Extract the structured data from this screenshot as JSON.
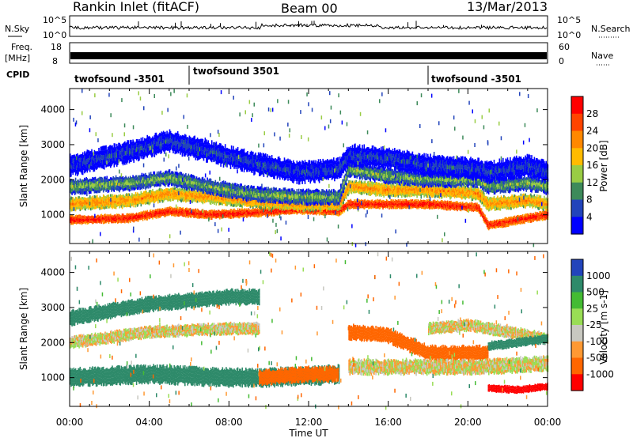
{
  "header": {
    "station": "Rankin Inlet (fitACF)",
    "beam": "Beam 00",
    "date": "13/Mar/2013"
  },
  "strips": {
    "nsky_label": "N.Sky",
    "nsky_ticks": [
      "10^5",
      "10^0"
    ],
    "nsearch_label": "N.Search",
    "nsearch_ticks": [
      "10^5",
      "10^0"
    ],
    "freq_label": "Freq.",
    "freq_unit": "[MHz]",
    "freq_ticks": [
      "18",
      "8"
    ],
    "nave_label": "Nave",
    "nave_ticks": [
      "60",
      "0"
    ],
    "cpid_label": "CPID",
    "cpid_segments": [
      {
        "label": "twofsound -3501",
        "start_hour": 0.0
      },
      {
        "label": "twofsound 3501",
        "start_hour": 6.0
      },
      {
        "label": "twofsound -3501",
        "start_hour": 18.0
      }
    ]
  },
  "chart_data": [
    {
      "type": "heatmap",
      "name": "power",
      "ylabel": "Slant Range [km]",
      "xlabel": "Time UT",
      "xlim_hours": [
        0,
        24
      ],
      "ylim": [
        180,
        4600
      ],
      "y_ticks": [
        1000,
        2000,
        3000,
        4000
      ],
      "x_ticks": [
        "00:00",
        "04:00",
        "08:00",
        "12:00",
        "16:00",
        "20:00",
        "00:00"
      ],
      "colorbar_label": "Power [dB]",
      "colorbar_ticks": [
        "28",
        "24",
        "20",
        "16",
        "12",
        "8",
        "4"
      ],
      "colorbar_colors": [
        "#ff0000",
        "#ff4400",
        "#ff8800",
        "#ffbb00",
        "#99cc44",
        "#3d8a5a",
        "#2244bb",
        "#0000ff"
      ],
      "bands": [
        {
          "hours": [
            0,
            3,
            5,
            7,
            9,
            11.5,
            13.5,
            14,
            16,
            18,
            20.5,
            21,
            23,
            24
          ],
          "center_km": [
            850,
            900,
            1100,
            1000,
            1050,
            1150,
            1100,
            1300,
            1300,
            1300,
            1200,
            700,
            900,
            1000
          ],
          "width_km": 300,
          "level": 28
        },
        {
          "hours": [
            0,
            3,
            5,
            7,
            9,
            11.5,
            13.5,
            14,
            16,
            18,
            20.5,
            21,
            23,
            24
          ],
          "center_km": [
            1300,
            1400,
            1600,
            1500,
            1400,
            1300,
            1300,
            1800,
            1700,
            1700,
            1600,
            1300,
            1400,
            1300
          ],
          "width_km": 450,
          "level": 20
        },
        {
          "hours": [
            0,
            3,
            5,
            7,
            9,
            11.5,
            13.5,
            14,
            16,
            18,
            20.5,
            21,
            23,
            24
          ],
          "center_km": [
            1800,
            1900,
            2050,
            1800,
            1600,
            1500,
            1500,
            2300,
            2100,
            2000,
            2000,
            1800,
            1900,
            1800
          ],
          "width_km": 500,
          "level": 12
        },
        {
          "hours": [
            0,
            3,
            5,
            7,
            9,
            11.5,
            13.5,
            14,
            16,
            18,
            20.5,
            21,
            23,
            24
          ],
          "center_km": [
            2400,
            2800,
            3100,
            2800,
            2500,
            2200,
            2300,
            2700,
            2600,
            2400,
            2300,
            2200,
            2400,
            2200
          ],
          "width_km": 700,
          "level": 6
        }
      ]
    },
    {
      "type": "heatmap",
      "name": "velocity",
      "ylabel": "Slant Range [km]",
      "xlabel": "Time UT",
      "xlim_hours": [
        0,
        24
      ],
      "ylim": [
        180,
        4600
      ],
      "y_ticks": [
        1000,
        2000,
        3000,
        4000
      ],
      "x_ticks": [
        "00:00",
        "04:00",
        "08:00",
        "12:00",
        "16:00",
        "20:00",
        "00:00"
      ],
      "colorbar_label": "Velocity [m s-1]",
      "colorbar_ticks": [
        "1000",
        "500",
        "25",
        "-25",
        "-100",
        "-500",
        "-1000"
      ],
      "colorbar_colors": [
        "#2244bb",
        "#2e8a6a",
        "#44bb33",
        "#99dd55",
        "#c8c8c0",
        "#ff9933",
        "#ff6600",
        "#ff0000"
      ],
      "bands": [
        {
          "hours": [
            0,
            4,
            8,
            9.5,
            12,
            13.5
          ],
          "center_km": [
            1000,
            1100,
            1000,
            1000,
            1050,
            1100
          ],
          "width_km": 600,
          "velocity": 500
        },
        {
          "hours": [
            0,
            4,
            8,
            9.5
          ],
          "center_km": [
            2000,
            2300,
            2400,
            2400
          ],
          "width_km": 400,
          "velocity": 0
        },
        {
          "hours": [
            0,
            4,
            8,
            9.5
          ],
          "center_km": [
            2700,
            3100,
            3300,
            3300
          ],
          "width_km": 500,
          "velocity": 500
        },
        {
          "hours": [
            9.5,
            12,
            13.5
          ],
          "center_km": [
            1000,
            1100,
            1100
          ],
          "width_km": 500,
          "velocity": -500
        },
        {
          "hours": [
            14,
            16,
            18,
            21
          ],
          "center_km": [
            2300,
            2200,
            1700,
            1700
          ],
          "width_km": 500,
          "velocity": -500
        },
        {
          "hours": [
            14,
            16,
            18,
            20.5,
            24
          ],
          "center_km": [
            1300,
            1300,
            1300,
            1300,
            1400
          ],
          "width_km": 500,
          "velocity": 0
        },
        {
          "hours": [
            18,
            20,
            22,
            24
          ],
          "center_km": [
            2400,
            2500,
            2300,
            2100
          ],
          "width_km": 400,
          "velocity": 0
        },
        {
          "hours": [
            21,
            22.5,
            24
          ],
          "center_km": [
            700,
            650,
            750
          ],
          "width_km": 250,
          "velocity": -1000
        },
        {
          "hours": [
            21,
            22.5,
            24
          ],
          "center_km": [
            1900,
            2000,
            2100
          ],
          "width_km": 300,
          "velocity": 700
        }
      ]
    }
  ]
}
